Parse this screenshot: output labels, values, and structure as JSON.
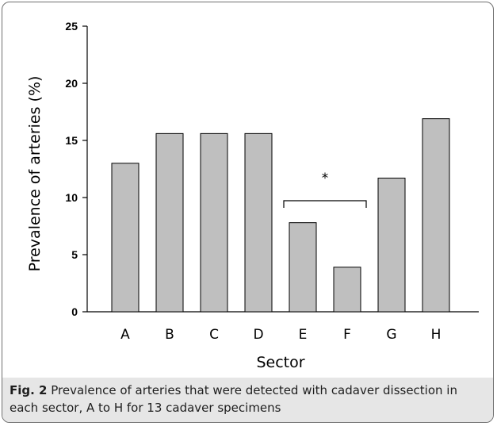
{
  "chart_data": {
    "type": "bar",
    "categories": [
      "A",
      "B",
      "C",
      "D",
      "E",
      "F",
      "G",
      "H"
    ],
    "values": [
      13.0,
      15.6,
      15.6,
      15.6,
      7.8,
      3.9,
      11.7,
      16.9
    ],
    "xlabel": "Sector",
    "ylabel": "Prevalence of arteries (%)",
    "ylim": [
      0,
      25
    ],
    "yticks": [
      "0",
      "5",
      "10",
      "15",
      "20",
      "25"
    ],
    "grid": false,
    "bar_color": "#bfbfbf",
    "significance": {
      "from": "E",
      "to": "F",
      "label": "*"
    }
  },
  "caption": {
    "lead": "Fig. 2",
    "text": " Prevalence of arteries that were detected with cadaver dissection in each sector, A to H for 13 cadaver specimens"
  }
}
